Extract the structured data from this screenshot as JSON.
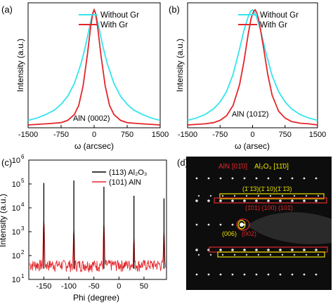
{
  "panels": {
    "a": {
      "label": "(a)",
      "ylabel": "Intensity (a.u.)",
      "xlabel": "ω (arcsec)",
      "xticks": [
        "-1500",
        "-750",
        "0",
        "750",
        "1500"
      ],
      "annotation": "AlN (0002)",
      "legend": [
        "Without Gr",
        "With Gr"
      ]
    },
    "b": {
      "label": "(b)",
      "ylabel": "Intensity (a.u.)",
      "xlabel": "ω (arsec)",
      "xticks": [
        "-1500",
        "-750",
        "0",
        "750",
        "1500"
      ],
      "annotation": "AlN (101̄2)",
      "legend": [
        "Without Gr",
        "With Gr"
      ]
    },
    "c": {
      "label": "(c)",
      "ylabel": "Intensity (a.u.)",
      "xlabel": "Phi (degree)",
      "xticks": [
        "-150",
        "-100",
        "-50",
        "0",
        "50"
      ],
      "yticks": [
        "10",
        "10",
        "10",
        "10",
        "10",
        "10"
      ],
      "yexp": [
        "1",
        "2",
        "3",
        "4",
        "5",
        "6"
      ],
      "legend": [
        "(113) Al₂O₃",
        "(101) AlN"
      ]
    },
    "d": {
      "label": "(d)",
      "title_aln": "AlN [01̄0]",
      "title_al2o3": "Al₂O₃ [11̄0]",
      "row_top_yellow": "(1̄ 1̄3)(1̄ 10)(1̄ 1̄3)",
      "row_top_red": "(1̄01) (100) (101̄)",
      "center_yellow": "(006)",
      "center_red": "(002)"
    }
  },
  "colors": {
    "without_gr": "#33e5ee",
    "with_gr": "#e3262a",
    "al2o3": "#000000",
    "aln": "#e3262a",
    "diffraction_bg": "#0d0d0d",
    "yellow": "#e8e000",
    "red": "#e3262a"
  },
  "chart_data": [
    {
      "type": "line",
      "title": "",
      "xlabel": "ω (arcsec)",
      "ylabel": "Intensity (a.u.)",
      "xlim": [
        -1500,
        1500
      ],
      "annotation": "AlN (0002)",
      "series": [
        {
          "name": "Without Gr",
          "x": [
            -1500,
            -1300,
            -1100,
            -900,
            -750,
            -600,
            -450,
            -300,
            -200,
            -100,
            -40,
            0,
            40,
            100,
            200,
            300,
            450,
            600,
            750,
            900,
            1100,
            1300,
            1500
          ],
          "y": [
            0.04,
            0.06,
            0.09,
            0.13,
            0.18,
            0.25,
            0.36,
            0.53,
            0.68,
            0.86,
            0.96,
            1.0,
            0.96,
            0.86,
            0.68,
            0.53,
            0.36,
            0.25,
            0.18,
            0.13,
            0.09,
            0.06,
            0.04
          ]
        },
        {
          "name": "With Gr",
          "x": [
            -1500,
            -1100,
            -900,
            -750,
            -600,
            -450,
            -350,
            -250,
            -150,
            -80,
            -30,
            0,
            30,
            80,
            150,
            250,
            350,
            450,
            600,
            750,
            900,
            1100,
            1500
          ],
          "y": [
            0.0,
            0.01,
            0.015,
            0.02,
            0.04,
            0.09,
            0.17,
            0.34,
            0.62,
            0.85,
            0.97,
            1.0,
            0.97,
            0.85,
            0.62,
            0.34,
            0.17,
            0.09,
            0.04,
            0.02,
            0.015,
            0.01,
            0.0
          ]
        }
      ]
    },
    {
      "type": "line",
      "title": "",
      "xlabel": "ω (arsec)",
      "ylabel": "Intensity (a.u.)",
      "xlim": [
        -1500,
        1500
      ],
      "annotation": "AlN (101̄2)",
      "series": [
        {
          "name": "Without Gr",
          "x": [
            -1500,
            -1300,
            -1100,
            -900,
            -750,
            -600,
            -450,
            -300,
            -200,
            -100,
            -40,
            0,
            40,
            100,
            200,
            300,
            450,
            600,
            750,
            900,
            1100,
            1300,
            1500
          ],
          "y": [
            0.04,
            0.06,
            0.09,
            0.14,
            0.2,
            0.29,
            0.44,
            0.66,
            0.82,
            0.94,
            0.99,
            1.0,
            0.98,
            0.93,
            0.8,
            0.64,
            0.43,
            0.29,
            0.2,
            0.14,
            0.09,
            0.06,
            0.04
          ]
        },
        {
          "name": "With Gr",
          "x": [
            -1500,
            -1100,
            -900,
            -750,
            -600,
            -450,
            -300,
            -200,
            -100,
            -30,
            30,
            60,
            100,
            150,
            250,
            350,
            450,
            600,
            750,
            900,
            1100,
            1300,
            1500
          ],
          "y": [
            0.0,
            0.01,
            0.02,
            0.04,
            0.08,
            0.17,
            0.35,
            0.55,
            0.79,
            0.93,
            0.99,
            1.0,
            0.97,
            0.9,
            0.68,
            0.44,
            0.26,
            0.12,
            0.06,
            0.03,
            0.015,
            0.01,
            0.0
          ]
        }
      ]
    },
    {
      "type": "line",
      "title": "",
      "xlabel": "Phi (degree)",
      "ylabel": "Intensity (a.u.)",
      "xlim": [
        -180,
        95
      ],
      "ylim": [
        10,
        1000000
      ],
      "yscale": "log",
      "series": [
        {
          "name": "(113) Al₂O₃",
          "peaks_x": [
            -150,
            -90,
            -30,
            30,
            90
          ],
          "peaks_y": [
            110000,
            140000,
            85000,
            32000,
            25000
          ]
        },
        {
          "name": "(101) AlN",
          "peaks_x": [
            -150,
            -90,
            -30,
            30,
            90
          ],
          "peaks_y": [
            3000,
            1200,
            2000,
            600,
            1000
          ]
        }
      ]
    }
  ]
}
